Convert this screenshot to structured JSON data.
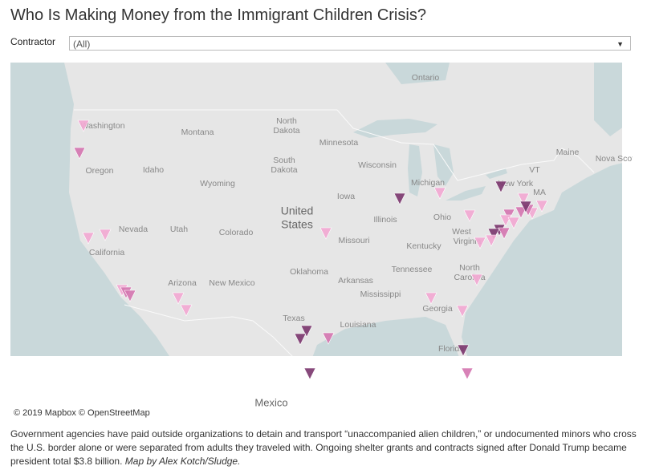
{
  "header": {
    "title": "Who Is Making Money from the Immigrant Children Crisis?"
  },
  "filter": {
    "label": "Contractor",
    "value": "(All)"
  },
  "map": {
    "labels": [
      "Ontario",
      "North",
      "Dakota",
      "Montana",
      "Minnesota",
      "Washington",
      "Oregon",
      "Idaho",
      "South",
      "Dakota",
      "Wisconsin",
      "Maine",
      "Nova Scotia",
      "Wyoming",
      "Michigan",
      "VT",
      "MA",
      "Iowa",
      "New York",
      "United",
      "States",
      "Nevada",
      "Utah",
      "Colorado",
      "Illinois",
      "Ohio",
      "Missouri",
      "West",
      "Virginia",
      "Kentucky",
      "California",
      "Oklahoma",
      "Tennessee",
      "North",
      "Carolina",
      "Arizona",
      "New Mexico",
      "Arkansas",
      "Mississippi",
      "Georgia",
      "Texas",
      "Louisiana",
      "Florida",
      "Mexico"
    ],
    "attribution": "© 2019 Mapbox © OpenStreetMap"
  },
  "caption": {
    "text": "Government agencies have paid outside organizations to detain and transport “unaccompanied alien children,” or undocumented minors who cross the U.S. border alone or were separated from adults they traveled with. Ongoing shelter grants and contracts signed after Donald Trump became president total $3.8 billion.",
    "byline": "Map by Alex Kotch/Sludge."
  }
}
